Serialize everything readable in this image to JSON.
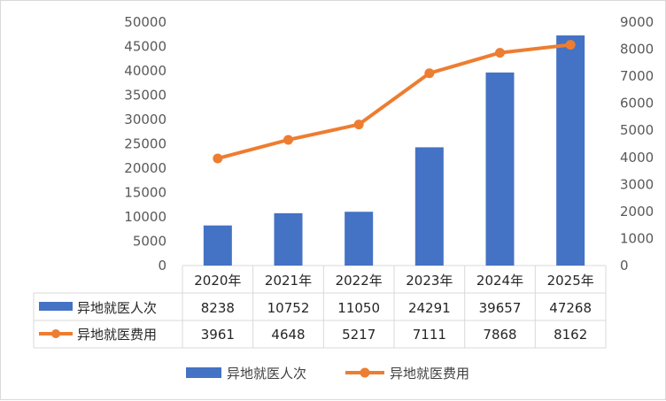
{
  "chart_data": {
    "type": "bar",
    "categories": [
      "2020年",
      "2021年",
      "2022年",
      "2023年",
      "2024年",
      "2025年"
    ],
    "series": [
      {
        "name": "异地就医人次",
        "type": "bar",
        "axis": "left",
        "values": [
          8238,
          10752,
          11050,
          24291,
          39657,
          47268
        ],
        "color": "#4472C4"
      },
      {
        "name": "异地就医费用",
        "type": "line",
        "axis": "right",
        "values": [
          3961,
          4648,
          5217,
          7111,
          7868,
          8162
        ],
        "color": "#ED7D31"
      }
    ],
    "y_left": {
      "ylim": [
        0,
        50000
      ],
      "ticks": [
        "0",
        "5000",
        "10000",
        "15000",
        "20000",
        "25000",
        "30000",
        "35000",
        "40000",
        "45000",
        "50000"
      ]
    },
    "y_right": {
      "ylim": [
        0,
        9000
      ],
      "ticks": [
        "0",
        "1000",
        "2000",
        "3000",
        "4000",
        "5000",
        "6000",
        "7000",
        "8000",
        "9000"
      ]
    },
    "title": "",
    "data_table": true,
    "legend_position": "bottom"
  }
}
